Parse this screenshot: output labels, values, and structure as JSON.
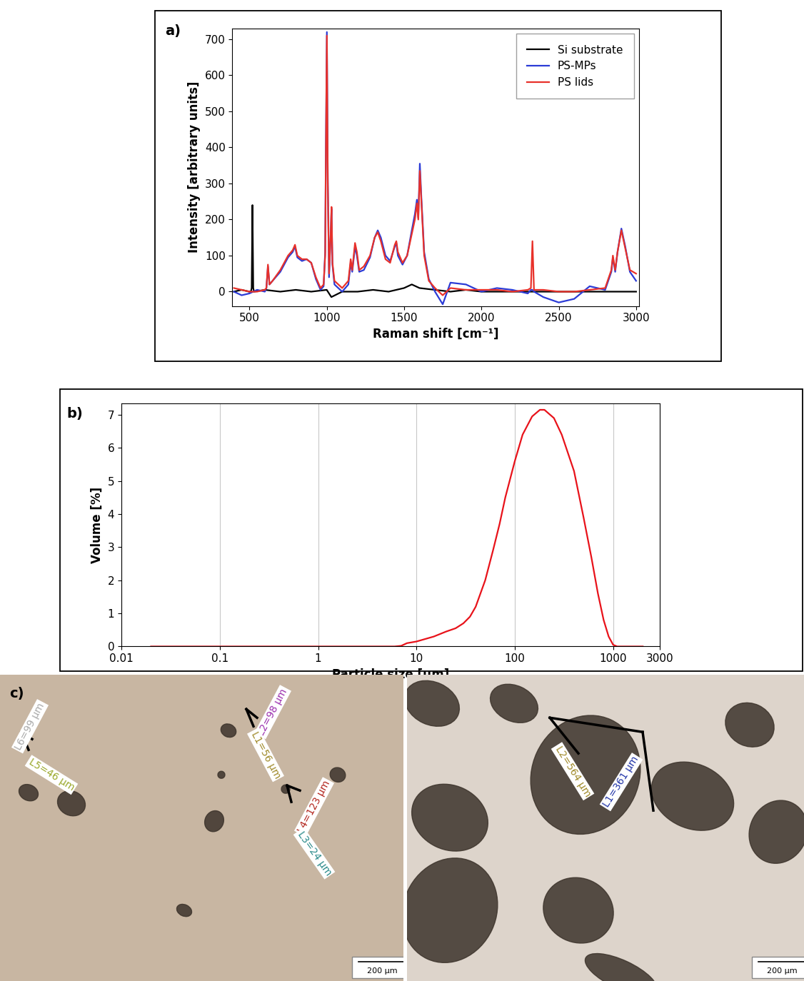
{
  "chart_data": [
    {
      "type": "line",
      "title": "a)",
      "x_label": "Raman shift [cm⁻¹]",
      "y_label": "Intensity [arbitrary units]",
      "xlim": [
        390,
        3020
      ],
      "ylim": [
        -40,
        730
      ],
      "xticks": [
        500,
        1000,
        1500,
        2000,
        2500,
        3000
      ],
      "yticks": [
        0,
        100,
        200,
        300,
        400,
        500,
        600,
        700
      ],
      "legend": "upper right",
      "series": [
        {
          "name": "Si substrate",
          "color": "#000000",
          "x": [
            400,
            450,
            500,
            510,
            515,
            520,
            525,
            530,
            600,
            700,
            800,
            900,
            1000,
            1030,
            1100,
            1200,
            1300,
            1400,
            1500,
            1550,
            1600,
            1700,
            1800,
            1900,
            2000,
            2500,
            3000
          ],
          "values": [
            0,
            5,
            0,
            0,
            10,
            240,
            10,
            0,
            5,
            0,
            5,
            0,
            5,
            -15,
            0,
            0,
            5,
            0,
            10,
            20,
            10,
            5,
            0,
            5,
            0,
            0,
            0
          ]
        },
        {
          "name": "PS-MPs",
          "color": "#2b3bd6",
          "x": [
            400,
            450,
            500,
            550,
            600,
            610,
            620,
            630,
            650,
            700,
            750,
            780,
            795,
            810,
            840,
            870,
            900,
            930,
            960,
            980,
            990,
            995,
            1001,
            1007,
            1015,
            1025,
            1031,
            1037,
            1050,
            1100,
            1140,
            1155,
            1165,
            1183,
            1195,
            1210,
            1240,
            1280,
            1310,
            1330,
            1350,
            1380,
            1410,
            1440,
            1450,
            1460,
            1490,
            1520,
            1550,
            1570,
            1583,
            1592,
            1602,
            1612,
            1630,
            1660,
            1700,
            1750,
            1800,
            1900,
            2000,
            2100,
            2200,
            2300,
            2320,
            2330,
            2340,
            2400,
            2500,
            2600,
            2700,
            2800,
            2840,
            2850,
            2865,
            2880,
            2905,
            2930,
            2960,
            3000
          ],
          "values": [
            0,
            -10,
            -5,
            5,
            0,
            10,
            70,
            20,
            30,
            55,
            95,
            110,
            125,
            95,
            85,
            90,
            80,
            35,
            5,
            15,
            110,
            420,
            720,
            310,
            40,
            150,
            230,
            75,
            20,
            0,
            20,
            80,
            55,
            125,
            100,
            55,
            60,
            95,
            150,
            170,
            150,
            100,
            85,
            125,
            135,
            100,
            75,
            100,
            170,
            215,
            255,
            205,
            355,
            260,
            110,
            35,
            0,
            -35,
            25,
            20,
            0,
            10,
            5,
            -5,
            5,
            5,
            0,
            -15,
            -30,
            -20,
            15,
            5,
            55,
            95,
            55,
            110,
            175,
            125,
            55,
            30
          ]
        },
        {
          "name": "PS lids",
          "color": "#e8312a",
          "x": [
            400,
            450,
            500,
            550,
            600,
            610,
            620,
            630,
            650,
            700,
            750,
            780,
            795,
            810,
            840,
            870,
            900,
            930,
            960,
            980,
            990,
            995,
            1001,
            1007,
            1015,
            1025,
            1031,
            1037,
            1050,
            1100,
            1140,
            1155,
            1165,
            1183,
            1195,
            1210,
            1240,
            1280,
            1310,
            1330,
            1350,
            1380,
            1410,
            1440,
            1450,
            1460,
            1490,
            1520,
            1550,
            1570,
            1583,
            1592,
            1602,
            1612,
            1630,
            1660,
            1700,
            1750,
            1800,
            1900,
            2000,
            2100,
            2200,
            2300,
            2320,
            2330,
            2340,
            2400,
            2500,
            2600,
            2700,
            2800,
            2840,
            2850,
            2865,
            2880,
            2905,
            2930,
            2960,
            3000
          ],
          "values": [
            10,
            5,
            0,
            0,
            5,
            10,
            75,
            20,
            30,
            60,
            100,
            115,
            130,
            100,
            90,
            90,
            80,
            40,
            10,
            20,
            100,
            400,
            710,
            300,
            50,
            150,
            235,
            80,
            30,
            10,
            30,
            90,
            60,
            135,
            110,
            60,
            70,
            100,
            150,
            165,
            140,
            90,
            80,
            130,
            140,
            110,
            80,
            100,
            160,
            200,
            245,
            200,
            335,
            250,
            100,
            30,
            10,
            -10,
            10,
            5,
            5,
            5,
            0,
            5,
            10,
            140,
            5,
            5,
            0,
            0,
            5,
            10,
            60,
            100,
            60,
            110,
            170,
            120,
            60,
            50
          ]
        }
      ]
    },
    {
      "type": "line",
      "title": "b)",
      "x_label": "Particle size [µm]",
      "y_label": "Volume [%]",
      "log": "x",
      "grid": "x",
      "xlim": [
        0.01,
        3000
      ],
      "ylim": [
        0,
        7.35
      ],
      "xticks": [
        0.01,
        0.1,
        1,
        10,
        100,
        1000,
        3000
      ],
      "yticks": [
        0,
        1,
        2,
        3,
        4,
        5,
        6,
        7
      ],
      "series": [
        {
          "color": "#e8121a",
          "x": [
            0.02,
            1,
            6,
            7,
            8,
            10,
            15,
            20,
            25,
            30,
            35,
            40,
            50,
            60,
            70,
            80,
            100,
            120,
            150,
            180,
            200,
            250,
            300,
            400,
            500,
            600,
            700,
            800,
            900,
            1000,
            1100,
            2000
          ],
          "values": [
            0,
            0,
            0,
            0.02,
            0.1,
            0.15,
            0.3,
            0.45,
            0.55,
            0.7,
            0.9,
            1.2,
            2.0,
            2.9,
            3.7,
            4.5,
            5.6,
            6.4,
            6.95,
            7.15,
            7.15,
            6.9,
            6.4,
            5.3,
            3.9,
            2.7,
            1.6,
            0.8,
            0.3,
            0.05,
            0,
            0
          ]
        }
      ]
    }
  ],
  "image_panel": {
    "label": "c)",
    "images": [
      {
        "measurements": [
          "L2=98 µm",
          "L1=56 µm",
          "L6=99 µm",
          "L5=46 µm",
          "L4=123 µm",
          "L3=24 µm"
        ],
        "scale_bar": "200 µm"
      },
      {
        "measurements": [
          "L2=564 µm",
          "L1=361 µm"
        ],
        "scale_bar": "200 µm"
      }
    ]
  }
}
